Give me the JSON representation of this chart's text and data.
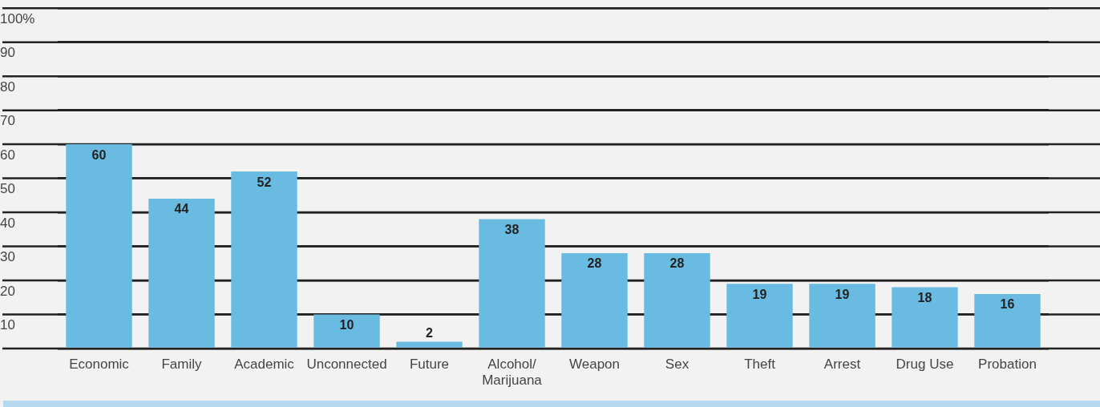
{
  "chart_data": {
    "type": "bar",
    "categories": [
      "Economic",
      "Family",
      "Academic",
      "Unconnected",
      "Future",
      "Alcohol/\nMarijuana",
      "Weapon",
      "Sex",
      "Theft",
      "Arrest",
      "Drug Use",
      "Probation"
    ],
    "values": [
      60,
      44,
      52,
      10,
      2,
      38,
      28,
      28,
      19,
      19,
      18,
      16
    ],
    "color": "#6abbe2",
    "ylim": [
      0,
      100
    ],
    "yticks": [
      {
        "value": 0,
        "label": null
      },
      10,
      20,
      30,
      40,
      50,
      60,
      70,
      80,
      90,
      {
        "value": 100,
        "label": "100%"
      }
    ],
    "grid": "y",
    "data_labels": true
  }
}
